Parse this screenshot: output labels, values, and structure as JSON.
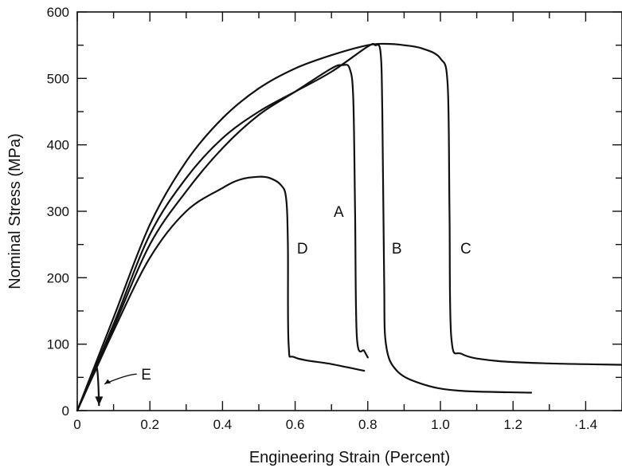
{
  "chart_data": {
    "type": "line",
    "title": "",
    "xlabel": "Engineering Strain (Percent)",
    "ylabel": "Nominal Stress (MPa)",
    "xlim": [
      0,
      1.5
    ],
    "ylim": [
      0,
      600
    ],
    "x_ticks": [
      0,
      0.2,
      0.4,
      0.6,
      0.8,
      1.0,
      1.2,
      1.4
    ],
    "x_tick_labels": [
      "0",
      "0.2",
      "0.4",
      "0.6",
      "0.8",
      "1.0",
      "1.2",
      "·1.4"
    ],
    "y_ticks": [
      0,
      100,
      200,
      300,
      400,
      500,
      600
    ],
    "y_tick_labels": [
      "0",
      "100",
      "200",
      "300",
      "400",
      "500",
      "600"
    ],
    "grid": false,
    "legend": "none (curves labeled directly)",
    "line_color": "#111111",
    "series": [
      {
        "name": "A",
        "x": [
          0,
          0.1,
          0.2,
          0.3,
          0.4,
          0.5,
          0.6,
          0.7,
          0.73,
          0.75,
          0.76,
          0.765,
          0.77,
          0.79,
          0.8
        ],
        "y": [
          0,
          125,
          250,
          330,
          395,
          445,
          480,
          515,
          520,
          515,
          470,
          300,
          110,
          90,
          80
        ]
      },
      {
        "name": "B",
        "x": [
          0,
          0.1,
          0.2,
          0.3,
          0.4,
          0.5,
          0.6,
          0.7,
          0.8,
          0.82,
          0.835,
          0.84,
          0.845,
          0.85,
          0.88,
          0.95,
          1.05,
          1.25
        ],
        "y": [
          0,
          130,
          265,
          350,
          410,
          450,
          480,
          510,
          548,
          550,
          540,
          450,
          200,
          100,
          60,
          40,
          30,
          27
        ]
      },
      {
        "name": "C",
        "x": [
          0,
          0.1,
          0.2,
          0.3,
          0.4,
          0.5,
          0.6,
          0.7,
          0.8,
          0.85,
          0.9,
          0.95,
          1.0,
          1.02,
          1.025,
          1.03,
          1.06,
          1.15,
          1.3,
          1.5
        ],
        "y": [
          0,
          140,
          280,
          375,
          440,
          485,
          515,
          535,
          550,
          552,
          550,
          545,
          530,
          490,
          300,
          110,
          85,
          75,
          71,
          69
        ]
      },
      {
        "name": "D",
        "x": [
          0,
          0.1,
          0.2,
          0.3,
          0.4,
          0.45,
          0.5,
          0.53,
          0.56,
          0.575,
          0.58,
          0.582,
          0.6,
          0.7,
          0.79
        ],
        "y": [
          0,
          120,
          230,
          300,
          335,
          348,
          352,
          350,
          340,
          320,
          250,
          100,
          80,
          70,
          60
        ]
      },
      {
        "name": "E",
        "x": [
          0,
          0.03,
          0.05,
          0.052,
          0.055,
          0.058,
          0.06
        ],
        "y": [
          0,
          38,
          60,
          65,
          62,
          40,
          8
        ]
      }
    ],
    "annotations": [
      {
        "text": "A",
        "x": 0.72,
        "y": 300
      },
      {
        "text": "B",
        "x": 0.88,
        "y": 245
      },
      {
        "text": "C",
        "x": 1.07,
        "y": 245
      },
      {
        "text": "D",
        "x": 0.62,
        "y": 245
      },
      {
        "text": "E",
        "x": 0.19,
        "y": 55
      }
    ]
  }
}
